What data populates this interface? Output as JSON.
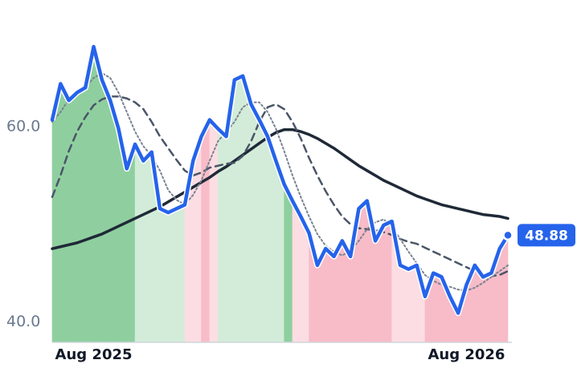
{
  "chart_data": {
    "type": "line",
    "categories": [
      null,
      null,
      null,
      null,
      null,
      "Aug 2025",
      null,
      null,
      null,
      null,
      null,
      null,
      null,
      null,
      null,
      null,
      null,
      null,
      null,
      null,
      null,
      null,
      null,
      null,
      null,
      null,
      null,
      null,
      null,
      null,
      null,
      null,
      null,
      null,
      null,
      null,
      null,
      null,
      null,
      null,
      null,
      null,
      null,
      null,
      null,
      null,
      null,
      null,
      null,
      null,
      "Aug 2026",
      null,
      null,
      null,
      null,
      null
    ],
    "series": [
      {
        "color": "#2563eb",
        "dash": "solid",
        "width": 4.5,
        "values": [
          60.7,
          64.4,
          62.7,
          63.5,
          64,
          68.2,
          64.8,
          62.7,
          59.8,
          55.7,
          58.2,
          56.5,
          57.4,
          51.6,
          51.2,
          51.6,
          52,
          56.5,
          59,
          60.7,
          59.8,
          59,
          64.8,
          65.2,
          62.3,
          60.7,
          59,
          56.5,
          54.1,
          52.4,
          50.8,
          49.1,
          45.8,
          47.5,
          46.7,
          48.3,
          46.7,
          51.6,
          52.4,
          48.3,
          49.9,
          50.3,
          45.8,
          45.4,
          45.8,
          42.6,
          45,
          44.6,
          42.6,
          40.9,
          43.8,
          45.8,
          44.6,
          45,
          47.5,
          48.88
        ]
      },
      {
        "color": "#7a8290",
        "dash": "dotted",
        "width": 2,
        "values": [
          60.5,
          61.5,
          62.8,
          63.5,
          64,
          65,
          65.5,
          65,
          63.5,
          61.5,
          59.5,
          58,
          57,
          55.5,
          53.5,
          52.5,
          52,
          53,
          54.5,
          56.5,
          58.5,
          59.5,
          60.5,
          62,
          62.5,
          62.5,
          61.5,
          59.8,
          57.5,
          55,
          52.8,
          50.8,
          49,
          47.8,
          47.2,
          46.8,
          47.3,
          48.3,
          49.5,
          50.2,
          50.5,
          49.8,
          48.5,
          47.2,
          46,
          44.8,
          44.2,
          43.8,
          43.6,
          43.3,
          43.2,
          43.5,
          44,
          44.6,
          45.2,
          45.8
        ]
      },
      {
        "color": "#4a5568",
        "dash": "dashed",
        "width": 2.5,
        "values": [
          52.8,
          55,
          57.5,
          59.5,
          61,
          62.2,
          62.8,
          63.1,
          63.1,
          62.9,
          62.5,
          61.8,
          60.5,
          59,
          57.8,
          56.6,
          55.5,
          55,
          55.3,
          55.8,
          56,
          56.2,
          56.3,
          57,
          58.5,
          60.5,
          62,
          62.3,
          61.8,
          60.5,
          58.8,
          56.8,
          55,
          53.4,
          52,
          50.8,
          50,
          49.6,
          49.5,
          49.4,
          49.2,
          48.9,
          48.5,
          48.2,
          48,
          47.6,
          47.2,
          46.8,
          46.4,
          46,
          45.6,
          45.2,
          44.9,
          44.7,
          44.8,
          45.2
        ]
      },
      {
        "color": "#1f2937",
        "dash": "solid",
        "width": 3.5,
        "values": [
          47.5,
          47.7,
          47.9,
          48.1,
          48.4,
          48.7,
          49,
          49.4,
          49.8,
          50.2,
          50.6,
          51,
          51.4,
          51.8,
          52.3,
          52.8,
          53.3,
          53.8,
          54.3,
          54.8,
          55.4,
          55.9,
          56.5,
          57.1,
          57.7,
          58.3,
          58.9,
          59.4,
          59.7,
          59.7,
          59.5,
          59.2,
          58.8,
          58.3,
          57.8,
          57.2,
          56.6,
          56,
          55.5,
          55,
          54.5,
          54.1,
          53.7,
          53.3,
          52.9,
          52.6,
          52.3,
          52,
          51.8,
          51.6,
          51.4,
          51.2,
          51,
          50.9,
          50.8,
          50.6
        ]
      }
    ],
    "area_colors": [
      "#8fcf9f",
      "#8fcf9f",
      "#8fcf9f",
      "#8fcf9f",
      "#8fcf9f",
      "#8fcf9f",
      "#8fcf9f",
      "#8fcf9f",
      "#8fcf9f",
      "#8fcf9f",
      "#d2ecd9",
      "#d2ecd9",
      "#d2ecd9",
      "#d2ecd9",
      "#d2ecd9",
      "#d2ecd9",
      "#fcdde3",
      "#fcdde3",
      "#f7bcc8",
      "#fcdde3",
      "#d2ecd9",
      "#d2ecd9",
      "#d2ecd9",
      "#d2ecd9",
      "#d2ecd9",
      "#d2ecd9",
      "#d2ecd9",
      "#d2ecd9",
      "#8fcf9f",
      "#fcdde3",
      "#fcdde3",
      "#f7bcc8",
      "#f7bcc8",
      "#f7bcc8",
      "#f7bcc8",
      "#f7bcc8",
      "#f7bcc8",
      "#f7bcc8",
      "#f7bcc8",
      "#f7bcc8",
      "#f7bcc8",
      "#fcdde3",
      "#fcdde3",
      "#fcdde3",
      "#fcdde3",
      "#f7bcc8",
      "#f7bcc8",
      "#f7bcc8",
      "#f7bcc8",
      "#f7bcc8",
      "#f7bcc8",
      "#f7bcc8",
      "#f7bcc8",
      "#f7bcc8",
      "#f7bcc8"
    ],
    "ylim": [
      37.9,
      69.7
    ],
    "yticks": [
      {
        "value": 60,
        "label": "60.0"
      },
      {
        "value": 40,
        "label": "40.0"
      }
    ],
    "badge_color": "#2563eb"
  }
}
